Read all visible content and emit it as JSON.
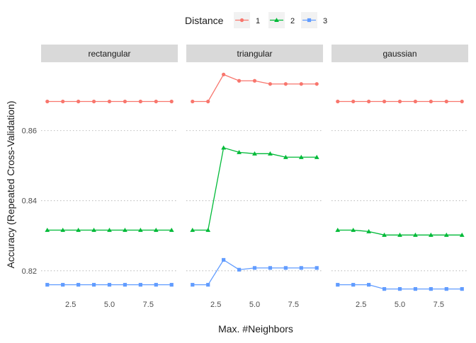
{
  "chart_data": {
    "type": "line",
    "legend": {
      "title": "Distance",
      "position": "top"
    },
    "ylabel": "Accuracy (Repeated Cross-Validation)",
    "xlabel": "Max. #Neighbors",
    "x": [
      1,
      2,
      3,
      4,
      5,
      6,
      7,
      8,
      9
    ],
    "xlim": [
      0.6,
      9.4
    ],
    "ylim": [
      0.8125,
      0.8795
    ],
    "x_ticks": [
      2.5,
      5.0,
      7.5
    ],
    "x_tick_labels": [
      "2.5",
      "5.0",
      "7.5"
    ],
    "y_ticks": [
      0.82,
      0.84,
      0.86
    ],
    "y_tick_labels": [
      "0.82",
      "0.84",
      "0.86"
    ],
    "grid": "horizontal-dotted",
    "panels": [
      {
        "strip": "rectangular",
        "series": [
          {
            "name": "1",
            "color": "#F8766D",
            "marker": "circle",
            "values": [
              0.8683,
              0.8683,
              0.8683,
              0.8683,
              0.8683,
              0.8683,
              0.8683,
              0.8683,
              0.8683
            ]
          },
          {
            "name": "2",
            "color": "#00BA38",
            "marker": "triangle",
            "values": [
              0.8316,
              0.8316,
              0.8316,
              0.8316,
              0.8316,
              0.8316,
              0.8316,
              0.8316,
              0.8316
            ]
          },
          {
            "name": "3",
            "color": "#619CFF",
            "marker": "square",
            "values": [
              0.816,
              0.816,
              0.816,
              0.816,
              0.816,
              0.816,
              0.816,
              0.816,
              0.816
            ]
          }
        ]
      },
      {
        "strip": "triangular",
        "series": [
          {
            "name": "1",
            "color": "#F8766D",
            "marker": "circle",
            "values": [
              0.8683,
              0.8683,
              0.876,
              0.8742,
              0.8742,
              0.8733,
              0.8733,
              0.8733,
              0.8733
            ]
          },
          {
            "name": "2",
            "color": "#00BA38",
            "marker": "triangle",
            "values": [
              0.8316,
              0.8316,
              0.8551,
              0.8538,
              0.8534,
              0.8534,
              0.8524,
              0.8524,
              0.8524
            ]
          },
          {
            "name": "3",
            "color": "#619CFF",
            "marker": "square",
            "values": [
              0.816,
              0.816,
              0.8231,
              0.8203,
              0.8208,
              0.8208,
              0.8208,
              0.8208,
              0.8208
            ]
          }
        ]
      },
      {
        "strip": "gaussian",
        "series": [
          {
            "name": "1",
            "color": "#F8766D",
            "marker": "circle",
            "values": [
              0.8683,
              0.8683,
              0.8683,
              0.8683,
              0.8683,
              0.8683,
              0.8683,
              0.8683,
              0.8683
            ]
          },
          {
            "name": "2",
            "color": "#00BA38",
            "marker": "triangle",
            "values": [
              0.8316,
              0.8316,
              0.8312,
              0.8302,
              0.8302,
              0.8302,
              0.8302,
              0.8302,
              0.8302
            ]
          },
          {
            "name": "3",
            "color": "#619CFF",
            "marker": "square",
            "values": [
              0.816,
              0.816,
              0.816,
              0.8148,
              0.8148,
              0.8148,
              0.8148,
              0.8148,
              0.8148
            ]
          }
        ]
      }
    ]
  }
}
